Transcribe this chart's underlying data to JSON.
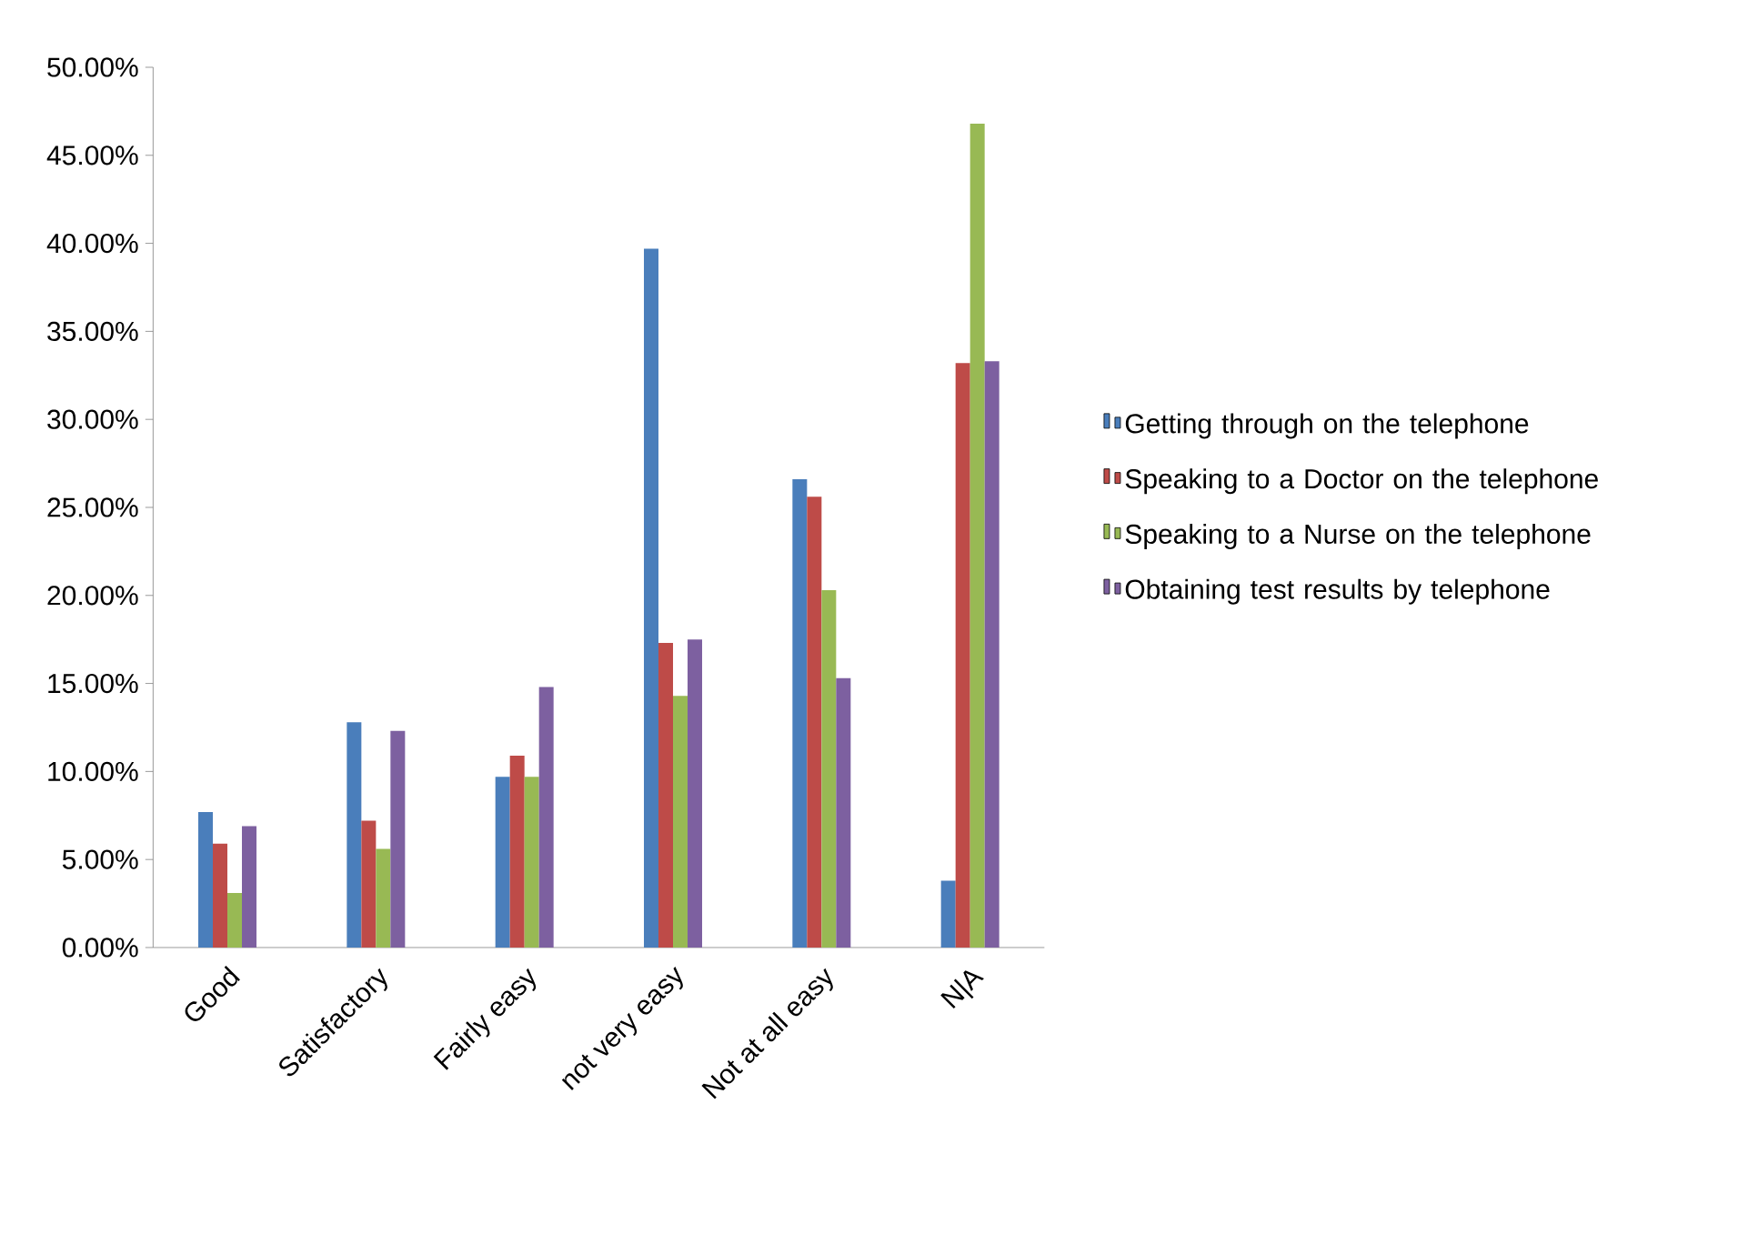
{
  "chart_data": {
    "type": "bar",
    "categories": [
      "Good",
      "Satisfactory",
      "Fairly easy",
      "not very easy",
      "Not at all easy",
      "N|A"
    ],
    "series": [
      {
        "name": "Getting through on the telephone",
        "color": "#4a7ebb",
        "values": [
          7.7,
          12.8,
          9.7,
          39.7,
          26.6,
          3.8
        ]
      },
      {
        "name": "Speaking to a Doctor on the telephone",
        "color": "#be4b48",
        "values": [
          5.9,
          7.2,
          10.9,
          17.3,
          25.6,
          33.2
        ]
      },
      {
        "name": "Speaking to a Nurse on the telephone",
        "color": "#98b954",
        "values": [
          3.1,
          5.6,
          9.7,
          14.3,
          20.3,
          46.8
        ]
      },
      {
        "name": "Obtaining test results by telephone",
        "color": "#7d60a0",
        "values": [
          6.9,
          12.3,
          14.8,
          17.5,
          15.3,
          33.3
        ]
      }
    ],
    "ylim": [
      0,
      50
    ],
    "yticks": [
      {
        "value": 0,
        "label": "0.00%"
      },
      {
        "value": 5,
        "label": "5.00%"
      },
      {
        "value": 10,
        "label": "10.00%"
      },
      {
        "value": 15,
        "label": "15.00%"
      },
      {
        "value": 20,
        "label": "20.00%"
      },
      {
        "value": 25,
        "label": "25.00%"
      },
      {
        "value": 30,
        "label": "30.00%"
      },
      {
        "value": 35,
        "label": "35.00%"
      },
      {
        "value": 40,
        "label": "40.00%"
      },
      {
        "value": 45,
        "label": "45.00%"
      },
      {
        "value": 50,
        "label": "50.00%"
      }
    ],
    "grid": false,
    "legend": "right"
  }
}
